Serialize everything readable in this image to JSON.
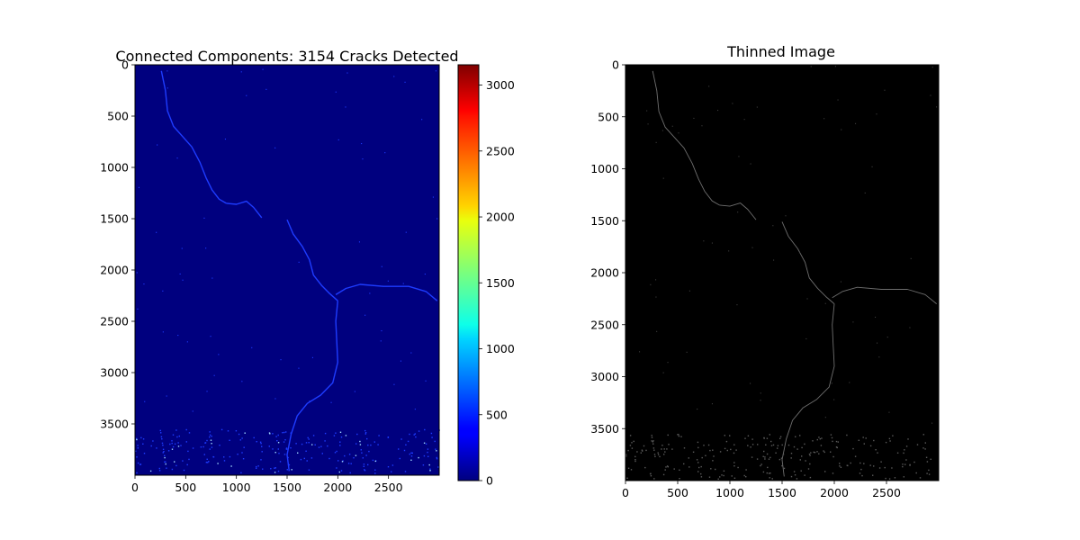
{
  "chart_data": [
    {
      "type": "heatmap",
      "title": "Connected Components: 3154 Cracks Detected",
      "xlabel": "",
      "ylabel": "",
      "xlim": [
        0,
        3000
      ],
      "ylim": [
        4000,
        0
      ],
      "xticks": [
        0,
        500,
        1000,
        1500,
        2000,
        2500
      ],
      "yticks": [
        0,
        500,
        1000,
        1500,
        2000,
        2500,
        3000,
        3500
      ],
      "colormap": "jet",
      "background_color": "#00007f",
      "crack_color": "#1e3cff",
      "colorbar": {
        "range": [
          0,
          3154
        ],
        "ticks": [
          0,
          500,
          1000,
          1500,
          2000,
          2500,
          3000
        ]
      },
      "grid": false
    },
    {
      "type": "heatmap",
      "title": "Thinned Image",
      "xlabel": "",
      "ylabel": "",
      "xlim": [
        0,
        3000
      ],
      "ylim": [
        4000,
        0
      ],
      "xticks": [
        0,
        500,
        1000,
        1500,
        2000,
        2500
      ],
      "yticks": [
        0,
        500,
        1000,
        1500,
        2000,
        2500,
        3000,
        3500
      ],
      "colormap": "gray",
      "background_color": "#000000",
      "crack_color": "#6e6e6e",
      "grid": false
    }
  ],
  "cracks": [
    [
      [
        260,
        60
      ],
      [
        300,
        250
      ],
      [
        320,
        450
      ],
      [
        380,
        600
      ],
      [
        470,
        700
      ],
      [
        560,
        800
      ],
      [
        640,
        950
      ],
      [
        700,
        1100
      ],
      [
        760,
        1220
      ],
      [
        830,
        1310
      ],
      [
        900,
        1350
      ]
    ],
    [
      [
        900,
        1350
      ],
      [
        1000,
        1360
      ],
      [
        1100,
        1330
      ],
      [
        1170,
        1390
      ],
      [
        1250,
        1490
      ]
    ],
    [
      [
        1500,
        1510
      ],
      [
        1560,
        1650
      ],
      [
        1650,
        1770
      ],
      [
        1720,
        1900
      ],
      [
        1760,
        2050
      ],
      [
        1840,
        2150
      ],
      [
        1920,
        2230
      ],
      [
        2000,
        2300
      ]
    ],
    [
      [
        1980,
        2240
      ],
      [
        2080,
        2180
      ],
      [
        2220,
        2140
      ],
      [
        2450,
        2160
      ],
      [
        2700,
        2160
      ],
      [
        2870,
        2210
      ],
      [
        2980,
        2300
      ]
    ],
    [
      [
        2000,
        2300
      ],
      [
        1980,
        2500
      ],
      [
        1990,
        2700
      ],
      [
        2000,
        2900
      ],
      [
        1950,
        3100
      ],
      [
        1830,
        3220
      ],
      [
        1700,
        3300
      ],
      [
        1600,
        3420
      ],
      [
        1540,
        3600
      ],
      [
        1500,
        3800
      ],
      [
        1520,
        3960
      ]
    ]
  ]
}
